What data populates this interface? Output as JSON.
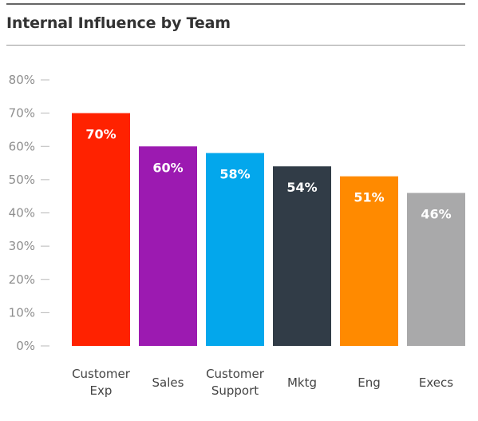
{
  "chart_data": {
    "type": "bar",
    "title": "Internal Influence by Team",
    "categories": [
      [
        "Customer",
        "Exp"
      ],
      [
        "Sales"
      ],
      [
        "Customer",
        "Support"
      ],
      [
        "Mktg"
      ],
      [
        "Eng"
      ],
      [
        "Execs"
      ]
    ],
    "values": [
      70,
      60,
      58,
      54,
      51,
      46
    ],
    "value_labels": [
      "70%",
      "60%",
      "58%",
      "54%",
      "51%",
      "46%"
    ],
    "colors": [
      "#FF2200",
      "#9C1AB1",
      "#03A7EC",
      "#313C47",
      "#FF8A00",
      "#A9A9AA"
    ],
    "yticks": [
      "0%",
      "10%",
      "20%",
      "30%",
      "40%",
      "50%",
      "60%",
      "70%",
      "80%"
    ],
    "ylim": [
      0,
      80
    ],
    "grid": false
  }
}
